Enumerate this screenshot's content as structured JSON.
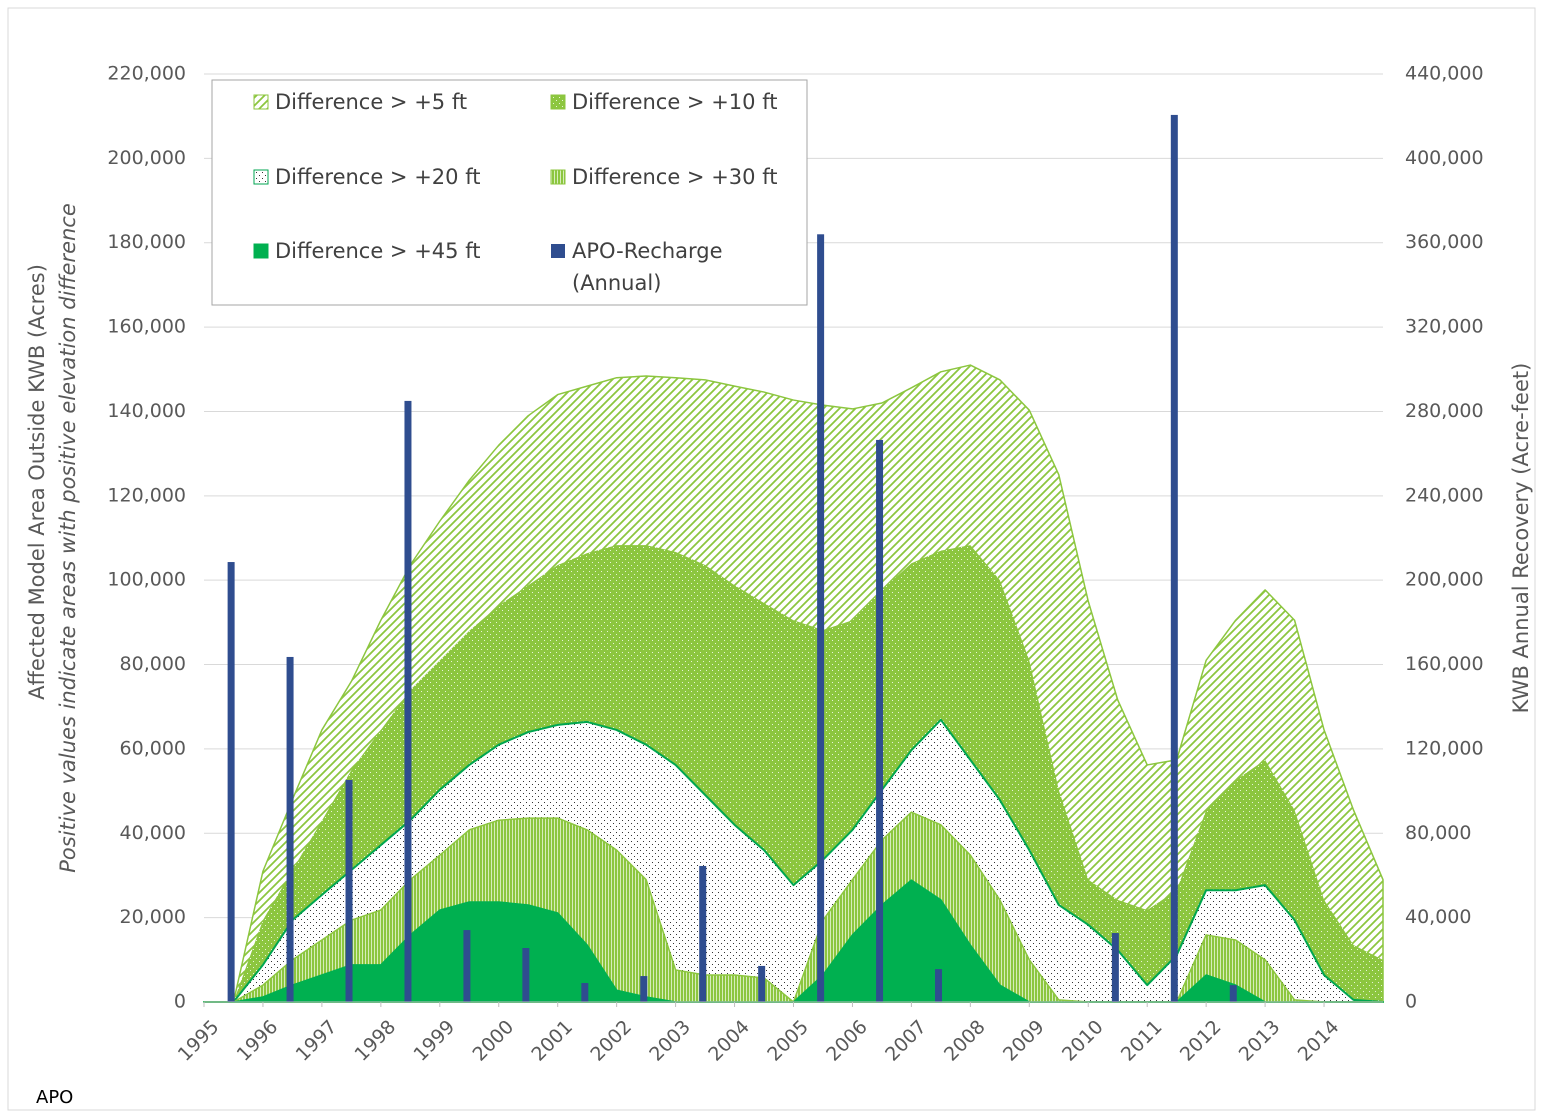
{
  "chart_data": {
    "type": "area",
    "y_label": "Affected Model Area Outside KWB (Acres)",
    "y_sublabel": "Positive values indicate areas with positive elevation difference",
    "y2_label": "KWB Annual Recovery (Acre-feet)",
    "note": "APO",
    "xlim": [
      1995,
      2015
    ],
    "xticks": [
      1995,
      1996,
      1997,
      1998,
      1999,
      2000,
      2001,
      2002,
      2003,
      2004,
      2005,
      2006,
      2007,
      2008,
      2009,
      2010,
      2011,
      2012,
      2013,
      2014
    ],
    "ylim": [
      0,
      220000
    ],
    "yticks": [
      0,
      {
        "value": 20000,
        "label": "20,000"
      },
      {
        "value": 40000,
        "label": "40,000"
      },
      {
        "value": 60000,
        "label": "60,000"
      },
      {
        "value": 80000,
        "label": "80,000"
      },
      {
        "value": 100000,
        "label": "100,000"
      },
      {
        "value": 120000,
        "label": "120,000"
      },
      {
        "value": 140000,
        "label": "140,000"
      },
      {
        "value": 160000,
        "label": "160,000"
      },
      {
        "value": 180000,
        "label": "180,000"
      },
      {
        "value": 200000,
        "label": "200,000"
      },
      {
        "value": 220000,
        "label": "220,000"
      }
    ],
    "y2lim": [
      0,
      440000
    ],
    "y2ticks": [
      0,
      {
        "value": 40000,
        "label": "40,000"
      },
      {
        "value": 80000,
        "label": "80,000"
      },
      {
        "value": 120000,
        "label": "120,000"
      },
      {
        "value": 160000,
        "label": "160,000"
      },
      {
        "value": 200000,
        "label": "200,000"
      },
      {
        "value": 240000,
        "label": "240,000"
      },
      {
        "value": 280000,
        "label": "280,000"
      },
      {
        "value": 320000,
        "label": "320,000"
      },
      {
        "value": 360000,
        "label": "360,000"
      },
      {
        "value": 400000,
        "label": "400,000"
      },
      {
        "value": 440000,
        "label": "440,000"
      }
    ],
    "grid": true,
    "legend": "top-left",
    "x": [
      1995,
      1995.5,
      1996,
      1996.5,
      1997,
      1997.5,
      1998,
      1998.5,
      1999,
      1999.5,
      2000,
      2000.5,
      2001,
      2001.5,
      2002,
      2002.5,
      2003,
      2003.5,
      2004,
      2004.5,
      2005,
      2005.5,
      2006,
      2006.5,
      2007,
      2007.5,
      2008,
      2008.5,
      2009,
      2009.5,
      2010,
      2010.5,
      2011,
      2011.5,
      2012,
      2012.5,
      2013,
      2013.5,
      2014,
      2014.5,
      2015
    ],
    "series": [
      {
        "name": "Difference > +5 ft",
        "type": "area",
        "pattern": "diagonal",
        "color": "#8cc63f",
        "values": [
          0,
          0,
          31000,
          48000,
          64500,
          76000,
          90500,
          103600,
          114000,
          123700,
          132000,
          139000,
          144000,
          146000,
          148000,
          148400,
          148000,
          147500,
          146000,
          144600,
          142700,
          141500,
          140600,
          142000,
          145600,
          149400,
          151000,
          147500,
          140300,
          125000,
          95000,
          71600,
          56200,
          57400,
          81000,
          90500,
          97700,
          90500,
          64500,
          45500,
          29000
        ]
      },
      {
        "name": "Difference > +10 ft",
        "type": "area",
        "pattern": "dots",
        "color": "#8cc63f",
        "values": [
          0,
          0,
          19400,
          31300,
          43000,
          55000,
          64500,
          74000,
          81000,
          88000,
          94000,
          98800,
          103600,
          106400,
          108300,
          108300,
          106700,
          103600,
          98800,
          94600,
          90500,
          88200,
          90500,
          97700,
          104000,
          107000,
          108300,
          100000,
          81000,
          50300,
          29000,
          24200,
          21800,
          26500,
          45500,
          52600,
          57400,
          45500,
          24200,
          13500,
          10000
        ]
      },
      {
        "name": "Difference > +20 ft",
        "type": "area",
        "pattern": "sparse-dots",
        "color": "#00a650",
        "values": [
          0,
          0,
          8800,
          19400,
          25400,
          31300,
          37200,
          43100,
          50300,
          56200,
          61000,
          64000,
          65700,
          66400,
          64500,
          61000,
          56200,
          49100,
          42000,
          36000,
          27700,
          33700,
          40800,
          50300,
          59700,
          66900,
          57400,
          47900,
          36000,
          23000,
          18300,
          12300,
          4000,
          11100,
          26500,
          26500,
          27700,
          19400,
          6400,
          500,
          0
        ]
      },
      {
        "name": "Difference > +30 ft",
        "type": "area",
        "pattern": "vertical",
        "color": "#8cc63f",
        "values": [
          0,
          0,
          4000,
          10000,
          14700,
          19400,
          21800,
          29000,
          34800,
          40800,
          43100,
          43600,
          43600,
          40800,
          36000,
          29000,
          7600,
          6400,
          6400,
          5700,
          0,
          19400,
          29000,
          38400,
          45000,
          42000,
          34800,
          24200,
          10000,
          500,
          0,
          0,
          0,
          0,
          15900,
          14700,
          10000,
          500,
          0,
          0,
          0
        ]
      },
      {
        "name": "Difference > +45 ft",
        "type": "area",
        "pattern": "solid",
        "color": "#00b050",
        "values": [
          0,
          0,
          1200,
          4000,
          6400,
          8800,
          8800,
          15900,
          21800,
          23700,
          23700,
          23000,
          21100,
          13500,
          2800,
          1200,
          0,
          0,
          0,
          0,
          0,
          6400,
          15900,
          23000,
          28900,
          24200,
          13500,
          4000,
          0,
          0,
          0,
          0,
          0,
          0,
          6400,
          4000,
          0,
          0,
          0,
          0,
          0
        ]
      },
      {
        "name": "APO-Recharge (Annual)",
        "type": "bar",
        "axis": "y2",
        "color": "#2f4d8f",
        "x": [
          1995.46,
          1996.46,
          1997.46,
          1998.46,
          1999.46,
          2000.46,
          2001.46,
          2002.46,
          2003.46,
          2004.46,
          2005.46,
          2006.46,
          2007.46,
          2010.46,
          2011.46,
          2012.46
        ],
        "values": [
          208600,
          163600,
          105300,
          285000,
          34100,
          25600,
          9000,
          12300,
          64500,
          17100,
          364000,
          266500,
          15600,
          32700,
          420600,
          8000
        ]
      }
    ]
  }
}
